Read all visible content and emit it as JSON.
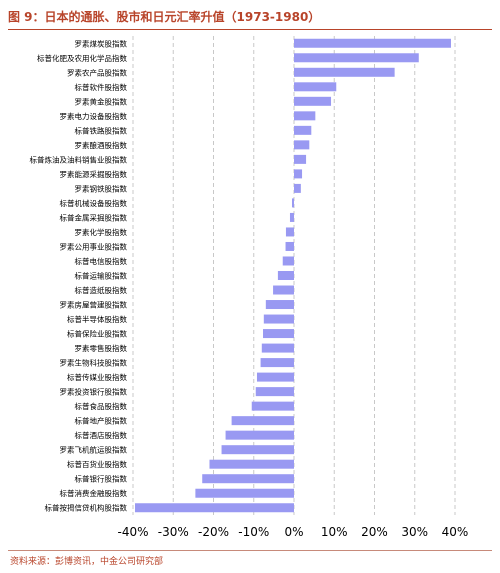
{
  "figure": {
    "title": "图 9：日本的通胀、股市和日元汇率升值（1973-1980）",
    "source": "资料来源：彭博资讯，中金公司研究部"
  },
  "chart_data": {
    "type": "bar",
    "orientation": "horizontal",
    "title": "",
    "xlabel": "",
    "ylabel": "",
    "unit": "%",
    "xlim": [
      -40,
      40
    ],
    "xticks": [
      "-40%",
      "-30%",
      "-20%",
      "-10%",
      "0%",
      "10%",
      "20%",
      "30%",
      "40%"
    ],
    "grid": "vertical dashed",
    "bar_color": "#9999f2",
    "categories": [
      "罗素煤炭股指数",
      "标普化肥及农用化学品指数",
      "罗素农产品股指数",
      "标普软件股指数",
      "罗素黄金股指数",
      "罗素电力设备股指数",
      "标普铁路股指数",
      "罗素酿酒股指数",
      "标普炼油及油料销售业股指数",
      "罗素能源采掘股指数",
      "罗素钢铁股指数",
      "标普机械设备股指数",
      "标普金属采掘股指数",
      "罗素化学股指数",
      "罗素公用事业股指数",
      "标普电信股指数",
      "标普运输股指数",
      "标普造纸股指数",
      "罗素房屋营建股指数",
      "标普半导体股指数",
      "标普保险业股指数",
      "罗素零售股指数",
      "罗素生物科技股指数",
      "标普传媒业股指数",
      "罗素投资银行股指数",
      "标普食品股指数",
      "标普地产股指数",
      "标普酒店股指数",
      "罗素飞机航运股指数",
      "标普百货业股指数",
      "标普银行股指数",
      "标普消费金融股指数",
      "标普按揭信贷机构股指数"
    ],
    "values": [
      39.0,
      31.0,
      25.0,
      10.5,
      9.2,
      5.3,
      4.3,
      3.8,
      3.0,
      2.0,
      1.7,
      -0.5,
      -1.0,
      -2.0,
      -2.1,
      -2.8,
      -4.0,
      -5.2,
      -7.0,
      -7.5,
      -7.7,
      -8.0,
      -8.3,
      -9.2,
      -9.5,
      -10.5,
      -15.5,
      -17.0,
      -18.0,
      -21.0,
      -22.8,
      -24.5,
      -39.5
    ]
  }
}
